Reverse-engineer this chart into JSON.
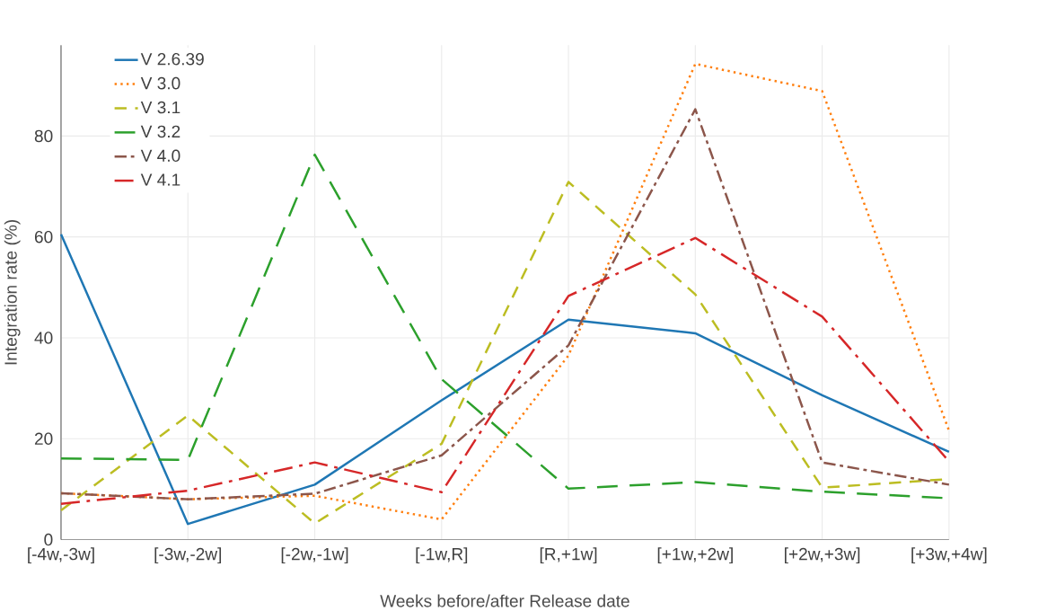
{
  "chart_data": {
    "type": "line",
    "xlabel": "Weeks before/after Release date",
    "ylabel": "Integration rate (%)",
    "categories": [
      "[-4w,-3w]",
      "[-3w,-2w]",
      "[-2w,-1w]",
      "[-1w,R]",
      "[R,+1w]",
      "[+1w,+2w]",
      "[+2w,+3w]",
      "[+3w,+4w]"
    ],
    "series": [
      {
        "name": "V 2.6.39",
        "color": "#1f77b4",
        "line_style": "solid",
        "values": [
          60.5,
          3.1,
          10.9,
          27.6,
          43.6,
          40.9,
          28.6,
          17.4
        ]
      },
      {
        "name": "V 3.0",
        "color": "#ff7f0e",
        "line_style": "dotted",
        "values": [
          9.2,
          8.0,
          8.7,
          4.0,
          36.5,
          94.3,
          88.9,
          21.6
        ]
      },
      {
        "name": "V 3.1",
        "color": "#bcbd22",
        "line_style": "dashed",
        "values": [
          5.8,
          24.6,
          3.2,
          19.0,
          70.9,
          48.6,
          10.3,
          12.0
        ]
      },
      {
        "name": "V 3.2",
        "color": "#2ca02c",
        "line_style": "longdash",
        "values": [
          16.1,
          15.8,
          76.3,
          31.8,
          10.1,
          11.4,
          9.5,
          8.2
        ]
      },
      {
        "name": "V 4.0",
        "color": "#8c564b",
        "line_style": "dashdot",
        "values": [
          9.2,
          8.0,
          9.1,
          16.7,
          38.5,
          85.3,
          15.3,
          10.9
        ]
      },
      {
        "name": "V 4.1",
        "color": "#d62728",
        "line_style": "longdashdot",
        "values": [
          7.1,
          9.7,
          15.3,
          9.4,
          48.3,
          59.8,
          44.2,
          15.5
        ]
      }
    ],
    "ylim": [
      0,
      98
    ],
    "yticks": [
      0,
      20,
      40,
      60,
      80
    ],
    "grid": true,
    "legend": "top left",
    "marker": "none"
  }
}
